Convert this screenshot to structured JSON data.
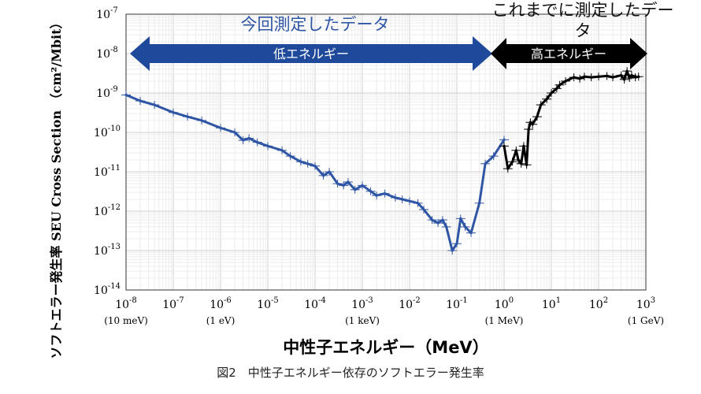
{
  "caption": "図2　中性子エネルギー依存のソフトエラー発生率",
  "headers": {
    "new_data": "今回測定したデータ",
    "old_data": "これまでに測定したデータ"
  },
  "arrows": {
    "low_energy": "低エネルギー",
    "high_energy": "高エネルギー"
  },
  "y_title": {
    "jp": "ソフトエラー発生率",
    "en": "SEU Cross Section",
    "unit": "（cm²/Mbit）"
  },
  "x_title": "中性子エネルギー（MeV）",
  "colors": {
    "blue": "#2f55a5",
    "black": "#000000"
  },
  "chart_data": {
    "type": "line",
    "x_scale": "log",
    "y_scale": "log",
    "xlim": [
      1e-08,
      1000
    ],
    "ylim": [
      1e-14,
      1e-07
    ],
    "grid": true,
    "x_tick_labels": [
      {
        "base": "10",
        "exp": "-8",
        "note": "(10 meV)"
      },
      {
        "base": "10",
        "exp": "-7",
        "note": ""
      },
      {
        "base": "10",
        "exp": "-6",
        "note": "(1 eV)"
      },
      {
        "base": "10",
        "exp": "-5",
        "note": ""
      },
      {
        "base": "10",
        "exp": "-4",
        "note": ""
      },
      {
        "base": "10",
        "exp": "-3",
        "note": "(1 keV)"
      },
      {
        "base": "10",
        "exp": "-2",
        "note": ""
      },
      {
        "base": "10",
        "exp": "-1",
        "note": ""
      },
      {
        "base": "10",
        "exp": "0",
        "note": "(1 MeV)"
      },
      {
        "base": "10",
        "exp": "1",
        "note": ""
      },
      {
        "base": "10",
        "exp": "2",
        "note": ""
      },
      {
        "base": "10",
        "exp": "3",
        "note": "(1 GeV)"
      }
    ],
    "y_tick_labels": [
      {
        "base": "10",
        "exp": "-7"
      },
      {
        "base": "10",
        "exp": "-8"
      },
      {
        "base": "10",
        "exp": "-9"
      },
      {
        "base": "10",
        "exp": "-10"
      },
      {
        "base": "10",
        "exp": "-11"
      },
      {
        "base": "10",
        "exp": "-12"
      },
      {
        "base": "10",
        "exp": "-13"
      },
      {
        "base": "10",
        "exp": "-14"
      }
    ],
    "series": [
      {
        "color": "#2f55a5",
        "x": [
          1e-08,
          2e-08,
          4e-08,
          1e-07,
          2e-07,
          4e-07,
          1e-06,
          2e-06,
          3e-06,
          4e-06,
          6e-06,
          1e-05,
          2e-05,
          3e-05,
          5e-05,
          7e-05,
          0.0001,
          0.00015,
          0.0002,
          0.0003,
          0.0004,
          0.0005,
          0.0007,
          0.001,
          0.0015,
          0.002,
          0.003,
          0.005,
          0.007,
          0.01,
          0.015,
          0.02,
          0.03,
          0.04,
          0.05,
          0.06,
          0.08,
          0.1,
          0.12,
          0.15,
          0.2,
          0.3,
          0.4,
          0.6,
          1.0
        ],
        "y": [
          8.9e-10,
          6.3e-10,
          5e-10,
          3.2e-10,
          2.5e-10,
          2e-10,
          1.3e-10,
          1e-10,
          6.3e-11,
          7.1e-11,
          5.6e-11,
          4.5e-11,
          3.5e-11,
          2.5e-11,
          1.8e-11,
          1.6e-11,
          1.4e-11,
          8e-12,
          1e-11,
          5e-12,
          4.5e-12,
          5.5e-12,
          3.5e-12,
          4.5e-12,
          3.2e-12,
          2.5e-12,
          2.8e-12,
          2.2e-12,
          2e-12,
          1.8e-12,
          1.6e-12,
          1.1e-12,
          6e-13,
          5e-13,
          6e-13,
          4e-13,
          1e-13,
          1.5e-13,
          6.5e-13,
          4e-13,
          2.8e-13,
          1.6e-12,
          1.6e-11,
          2.5e-11,
          6.5e-11
        ]
      },
      {
        "color": "#000000",
        "x": [
          1.0,
          1.2,
          1.5,
          1.8,
          2.0,
          2.3,
          2.6,
          3.0,
          3.3,
          3.6,
          4,
          5,
          6,
          8,
          10,
          13,
          15,
          20,
          30,
          40,
          50,
          70,
          100,
          150,
          200,
          300,
          350,
          400,
          450,
          500,
          600,
          700
        ],
        "y": [
          4.5e-11,
          1.2e-11,
          1.8e-11,
          3.5e-11,
          2e-11,
          1.6e-11,
          4.5e-11,
          1.5e-11,
          1.2e-10,
          1.8e-10,
          1.6e-10,
          2.5e-10,
          5e-10,
          7e-10,
          1e-09,
          1.3e-09,
          1.6e-09,
          2e-09,
          2.5e-09,
          2.3e-09,
          2.6e-09,
          2.5e-09,
          2.6e-09,
          2.7e-09,
          2.5e-09,
          2.8e-09,
          2.2e-09,
          3.6e-09,
          2.4e-09,
          2.8e-09,
          2.5e-09,
          2.6e-09
        ]
      }
    ]
  }
}
